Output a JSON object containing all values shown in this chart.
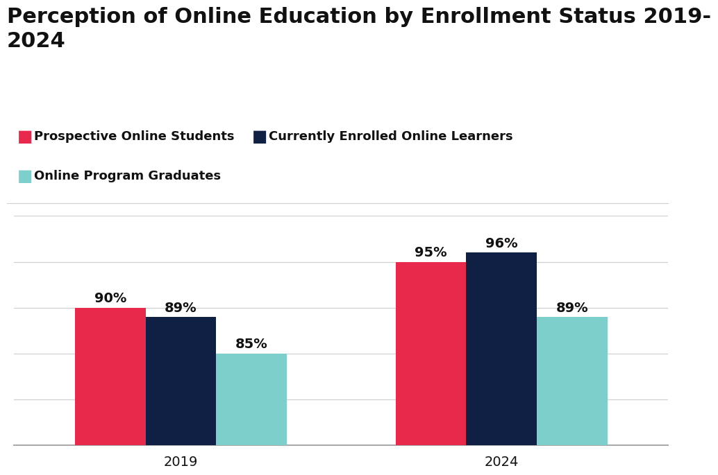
{
  "title": "Perception of Online Education by Enrollment Status 2019-\n2024",
  "categories": [
    "2019",
    "2024"
  ],
  "series": [
    {
      "label": "Prospective Online Students",
      "color": "#E8294B",
      "values": [
        90,
        95
      ]
    },
    {
      "label": "Currently Enrolled Online Learners",
      "color": "#0F2044",
      "values": [
        89,
        96
      ]
    },
    {
      "label": "Online Program Graduates",
      "color": "#7DCFCC",
      "values": [
        85,
        89
      ]
    }
  ],
  "bar_width": 0.22,
  "ylim": [
    75,
    100
  ],
  "background_color": "#ffffff",
  "title_fontsize": 22,
  "tick_fontsize": 14,
  "annotation_fontsize": 14,
  "legend_fontsize": 13,
  "grid_color": "#d0d0d0",
  "text_color": "#111111",
  "grid_ticks": [
    80,
    85,
    90,
    95,
    100
  ]
}
